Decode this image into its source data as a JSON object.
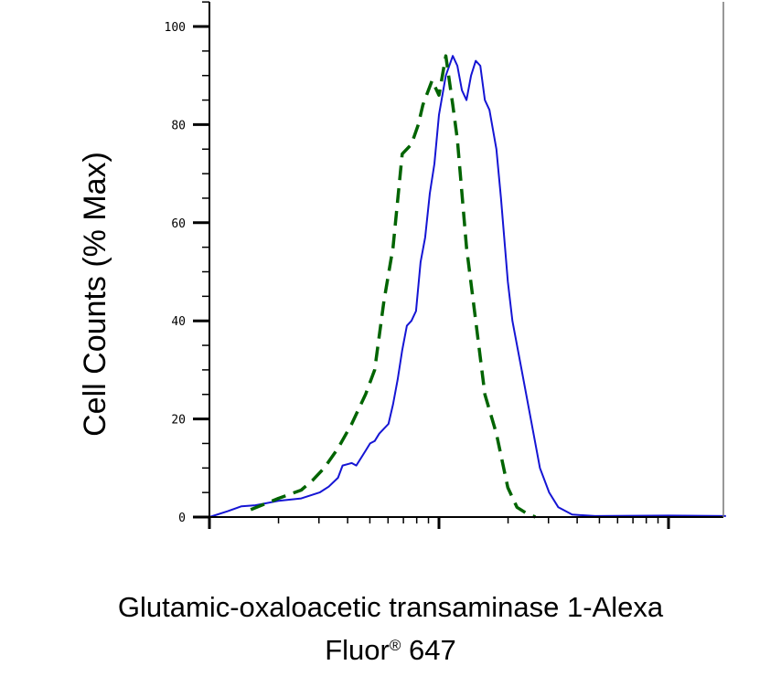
{
  "chart_data": {
    "type": "line",
    "xlabel_line1": "Glutamic-oxaloacetic transaminase 1-Alexa",
    "xlabel_line2_main": "Fluor",
    "xlabel_line2_mark": "®",
    "xlabel_line2_end": " 647",
    "ylabel": "Cell Counts (% Max)",
    "ylim": [
      0,
      105
    ],
    "yticks": [
      0,
      20,
      40,
      60,
      80,
      100
    ],
    "ytick_labels": [
      "0",
      "20",
      "40",
      "60",
      "80",
      "100"
    ],
    "x_scale": "log",
    "xlim_decades": [
      0,
      2.25
    ],
    "grid": false,
    "series": [
      {
        "color": "#1515d4",
        "style": "solid",
        "points": [
          [
            0,
            0
          ],
          [
            0.08,
            1.2
          ],
          [
            0.14,
            2.2
          ],
          [
            0.2,
            2.4
          ],
          [
            0.3,
            3.3
          ],
          [
            0.4,
            3.8
          ],
          [
            0.48,
            5
          ],
          [
            0.52,
            6.2
          ],
          [
            0.56,
            8
          ],
          [
            0.58,
            10.5
          ],
          [
            0.62,
            11
          ],
          [
            0.64,
            10.5
          ],
          [
            0.68,
            13.5
          ],
          [
            0.7,
            15
          ],
          [
            0.72,
            15.5
          ],
          [
            0.74,
            17
          ],
          [
            0.78,
            19
          ],
          [
            0.8,
            23
          ],
          [
            0.82,
            28
          ],
          [
            0.84,
            34
          ],
          [
            0.86,
            39
          ],
          [
            0.88,
            40
          ],
          [
            0.9,
            42
          ],
          [
            0.92,
            52
          ],
          [
            0.94,
            57
          ],
          [
            0.96,
            66
          ],
          [
            0.98,
            72
          ],
          [
            1.0,
            82
          ],
          [
            1.03,
            90
          ],
          [
            1.06,
            94
          ],
          [
            1.08,
            92
          ],
          [
            1.1,
            87
          ],
          [
            1.12,
            85
          ],
          [
            1.14,
            90
          ],
          [
            1.16,
            93
          ],
          [
            1.18,
            92
          ],
          [
            1.2,
            85
          ],
          [
            1.22,
            83
          ],
          [
            1.25,
            75
          ],
          [
            1.27,
            65
          ],
          [
            1.3,
            48
          ],
          [
            1.32,
            40
          ],
          [
            1.36,
            30
          ],
          [
            1.4,
            20
          ],
          [
            1.44,
            10
          ],
          [
            1.48,
            5
          ],
          [
            1.52,
            2
          ],
          [
            1.58,
            0.5
          ],
          [
            1.68,
            0.2
          ],
          [
            2.0,
            0.3
          ],
          [
            2.25,
            0.2
          ]
        ]
      },
      {
        "color": "#006400",
        "style": "dashed",
        "points": [
          [
            0.18,
            1.5
          ],
          [
            0.3,
            3.8
          ],
          [
            0.4,
            5.5
          ],
          [
            0.45,
            7.5
          ],
          [
            0.5,
            10
          ],
          [
            0.56,
            14
          ],
          [
            0.62,
            19
          ],
          [
            0.68,
            25
          ],
          [
            0.72,
            30
          ],
          [
            0.76,
            44
          ],
          [
            0.8,
            55
          ],
          [
            0.84,
            74
          ],
          [
            0.88,
            76
          ],
          [
            0.91,
            80
          ],
          [
            0.93,
            84
          ],
          [
            0.97,
            89
          ],
          [
            1.0,
            86
          ],
          [
            1.03,
            94
          ],
          [
            1.06,
            84
          ],
          [
            1.08,
            77
          ],
          [
            1.12,
            55
          ],
          [
            1.16,
            40
          ],
          [
            1.2,
            25
          ],
          [
            1.25,
            17
          ],
          [
            1.3,
            6
          ],
          [
            1.34,
            2
          ],
          [
            1.38,
            0.8
          ],
          [
            1.42,
            0
          ]
        ]
      }
    ]
  }
}
